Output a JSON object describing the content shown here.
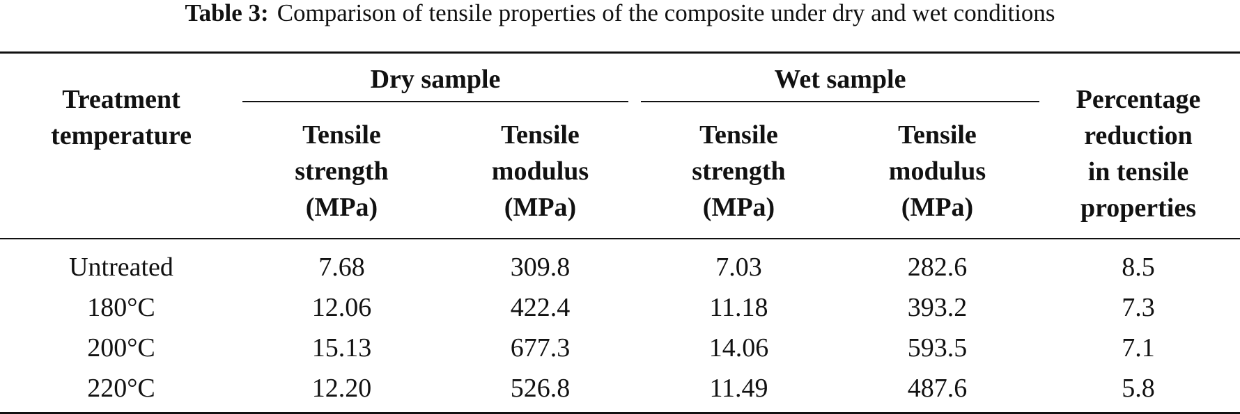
{
  "caption": {
    "label": "Table 3:",
    "text": "Comparison of tensile properties of the composite under dry and wet conditions"
  },
  "table": {
    "group_headers": {
      "dry": "Dry sample",
      "wet": "Wet sample"
    },
    "col_treatment": [
      "Treatment",
      "temperature"
    ],
    "col_dry_strength": [
      "Tensile",
      "strength",
      "(MPa)"
    ],
    "col_dry_modulus": [
      "Tensile",
      "modulus",
      "(MPa)"
    ],
    "col_wet_strength": [
      "Tensile",
      "strength",
      "(MPa)"
    ],
    "col_wet_modulus": [
      "Tensile",
      "modulus",
      "(MPa)"
    ],
    "col_reduction": [
      "Percentage",
      "reduction",
      "in tensile",
      "properties"
    ],
    "rows": [
      [
        "Untreated",
        "7.68",
        "309.8",
        "7.03",
        "282.6",
        "8.5"
      ],
      [
        "180°C",
        "12.06",
        "422.4",
        "11.18",
        "393.2",
        "7.3"
      ],
      [
        "200°C",
        "15.13",
        "677.3",
        "14.06",
        "593.5",
        "7.1"
      ],
      [
        "220°C",
        "12.20",
        "526.8",
        "11.49",
        "487.6",
        "5.8"
      ]
    ]
  }
}
